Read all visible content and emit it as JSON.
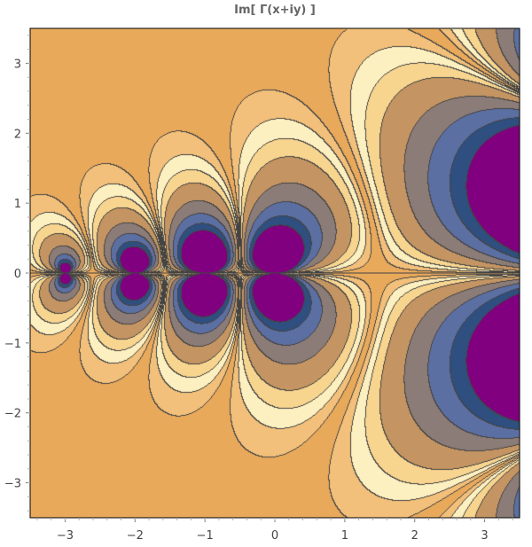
{
  "chart_data": {
    "type": "contour",
    "title": "Im[ Γ(x+iy) ]",
    "xlabel": "",
    "ylabel": "",
    "xlim": [
      -3.5,
      3.5
    ],
    "ylim": [
      -3.5,
      3.5
    ],
    "x_ticks": [
      -3,
      -2,
      -1,
      0,
      1,
      2,
      3
    ],
    "y_ticks": [
      -3,
      -2,
      -1,
      0,
      1,
      2,
      3
    ],
    "x_tick_labels": [
      "−3",
      "−2",
      "−1",
      "0",
      "1",
      "2",
      "3"
    ],
    "y_tick_labels": [
      "3",
      "2",
      "1",
      "0",
      "−1",
      "−2",
      "−3"
    ],
    "contour_levels": [
      -0.75,
      -0.5,
      -0.25,
      0,
      0.25,
      0.5,
      0.75
    ],
    "colors": {
      "extreme": "#800080",
      "level_minus2": "#2e4f7f",
      "level_minus1": "#5b6fa3",
      "level_0": "#8c7c78",
      "level_1": "#c49562",
      "level_2": "#e9a95b",
      "level_3": "#f2c07a",
      "level_4": "#f8d58f",
      "level_5": "#fdf0c0",
      "contour_line": "#444444",
      "frame": "#000000"
    },
    "grid": false,
    "legend": "none"
  }
}
